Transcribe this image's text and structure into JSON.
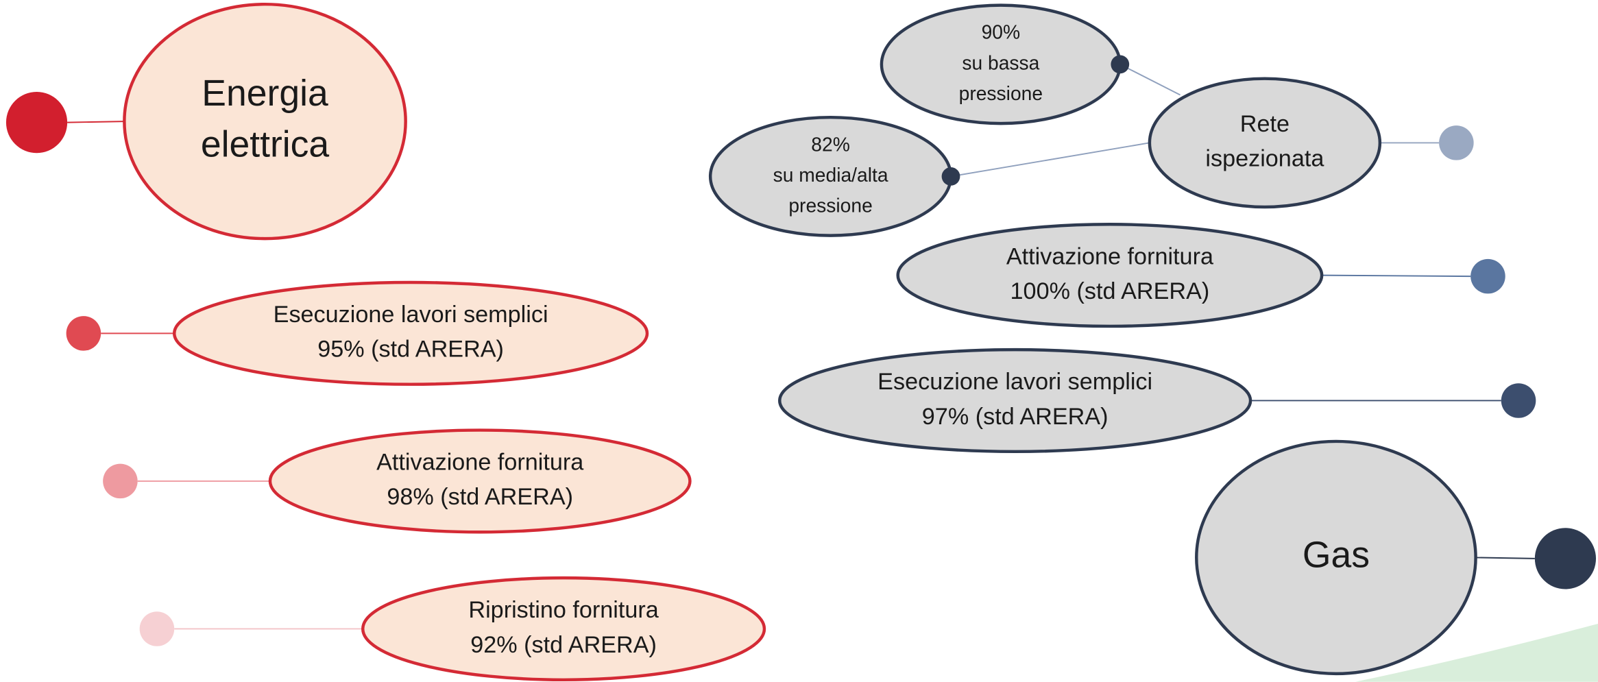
{
  "nodes": [
    {
      "lines": [
        "Energia",
        "elettrica"
      ]
    },
    {
      "lines": [
        "Esecuzione lavori semplici",
        "95% (std ARERA)"
      ]
    },
    {
      "lines": [
        "Attivazione fornitura",
        "98% (std ARERA)"
      ]
    },
    {
      "lines": [
        "Ripristino fornitura",
        "92% (std ARERA)"
      ]
    },
    {
      "lines": [
        "90%",
        "su bassa",
        "pressione"
      ]
    },
    {
      "lines": [
        "82%",
        "su media/alta",
        "pressione"
      ]
    },
    {
      "lines": [
        "Rete",
        "ispezionata"
      ]
    },
    {
      "lines": [
        "Attivazione fornitura",
        "100% (std ARERA)"
      ]
    },
    {
      "lines": [
        "Esecuzione lavori semplici",
        "97% (std ARERA)"
      ]
    },
    {
      "lines": [
        "Gas"
      ]
    }
  ]
}
